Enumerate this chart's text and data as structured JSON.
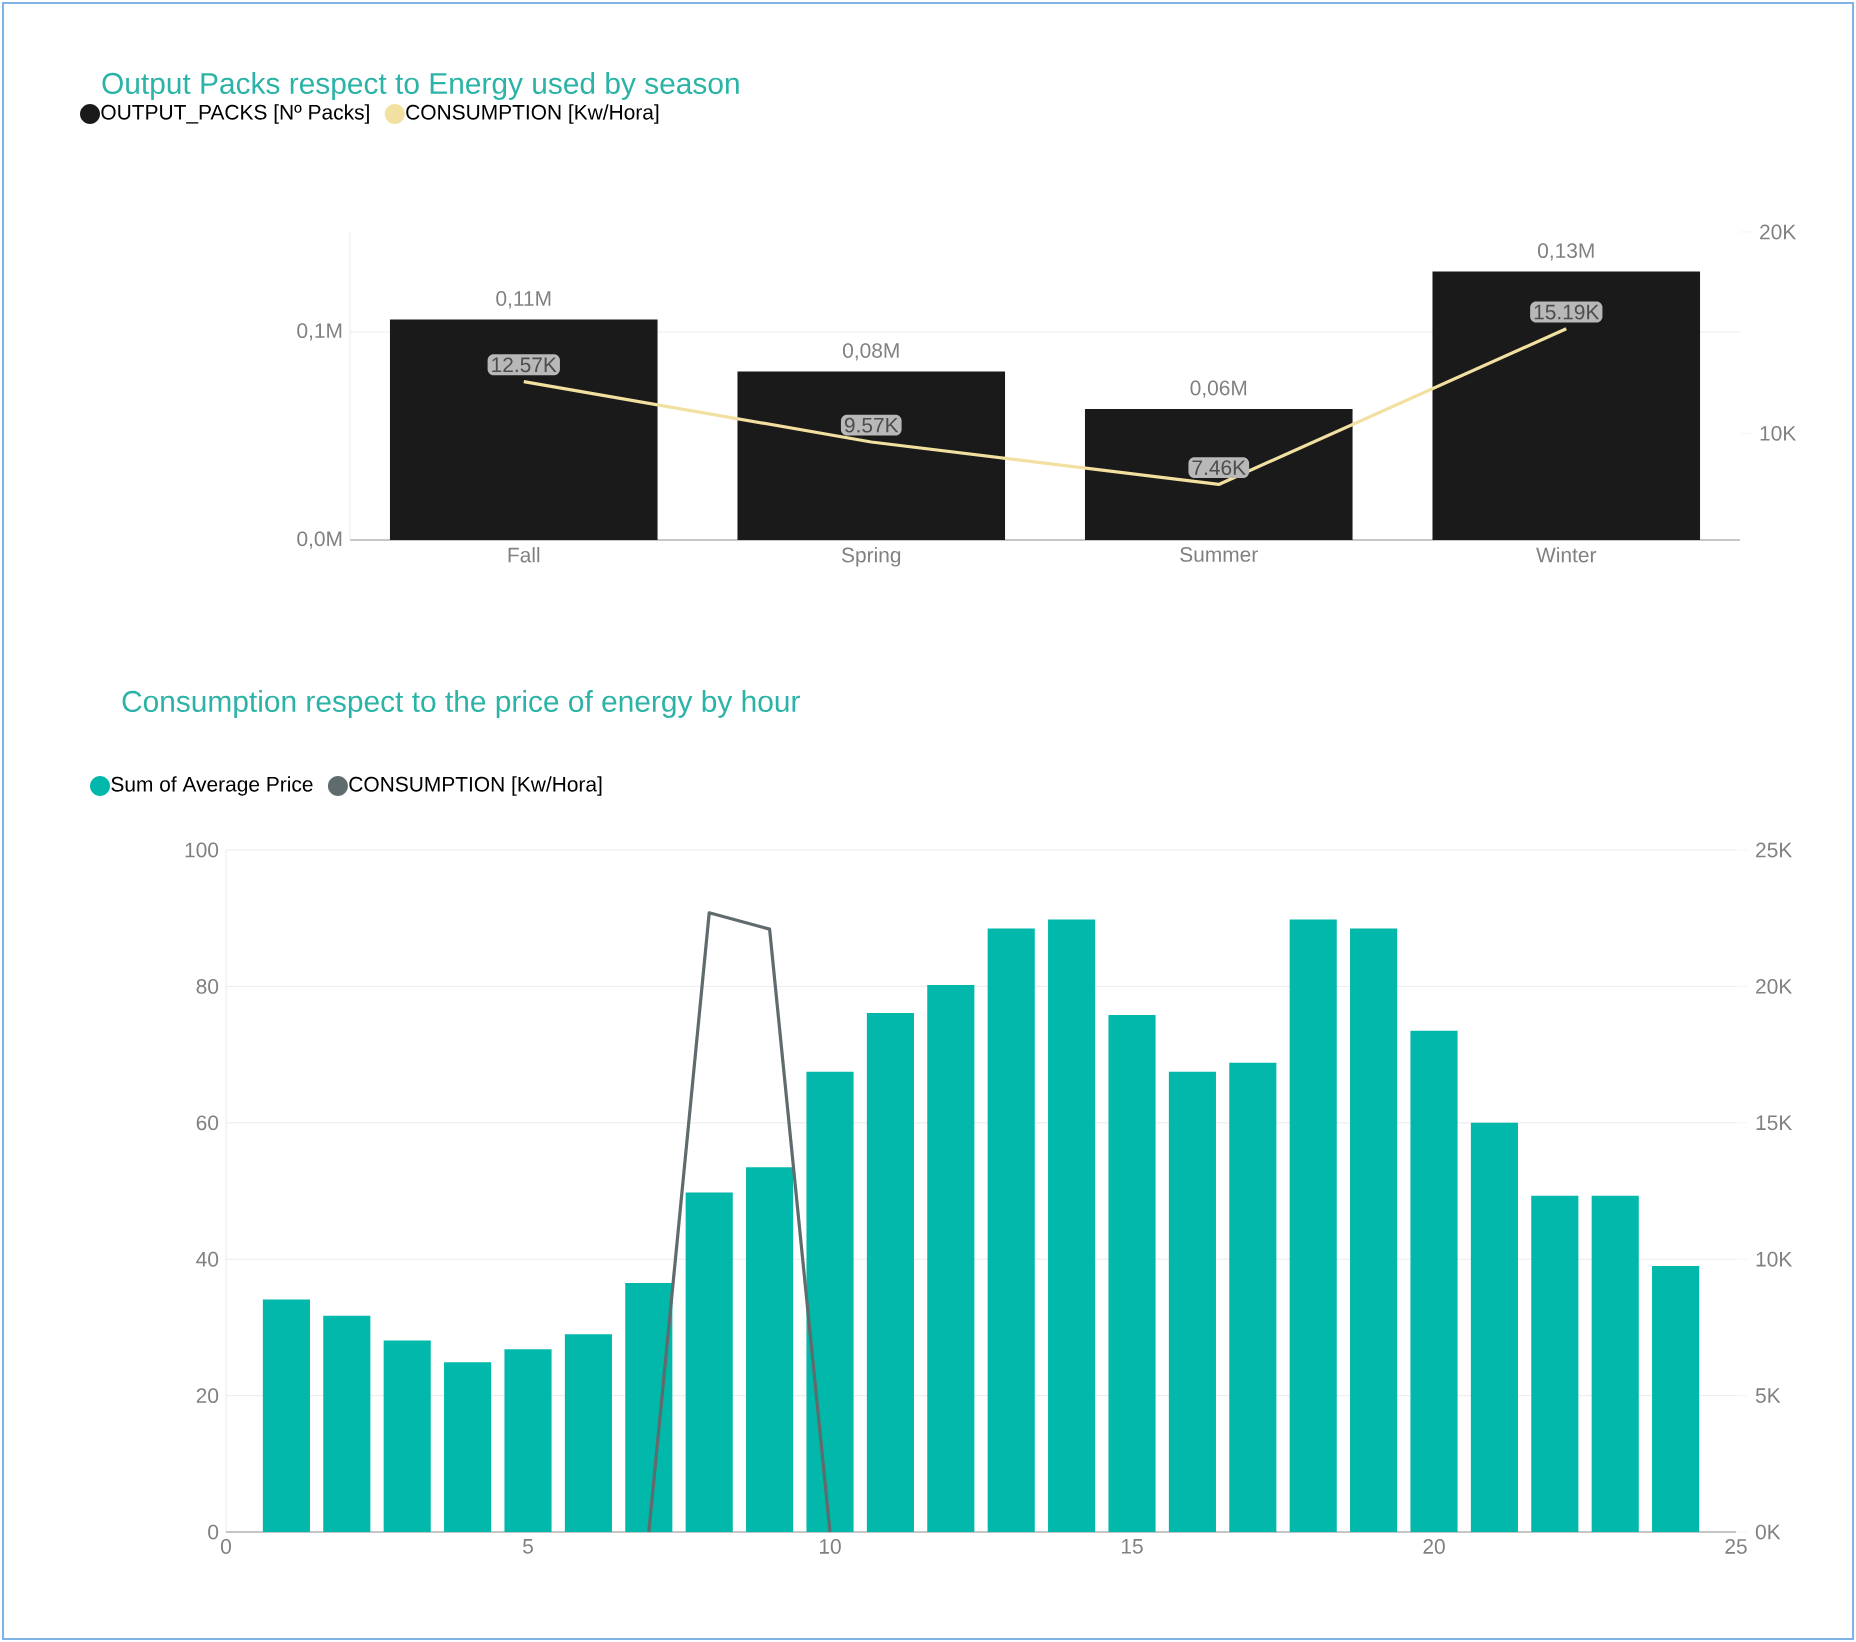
{
  "chart_data": [
    {
      "type": "bar",
      "title": "Output Packs respect to Energy used by season",
      "categories": [
        "Fall",
        "Spring",
        "Summer",
        "Winter"
      ],
      "series": [
        {
          "name": "OUTPUT_PACKS [Nº Packs]",
          "color": "#1a1a1a",
          "values": [
            106000,
            81000,
            63000,
            129000
          ],
          "value_labels": [
            "0,11M",
            "0,08M",
            "0,06M",
            "0,13M"
          ]
        },
        {
          "name": "CONSUMPTION [Kw/Hora]",
          "type": "line",
          "axis": "y2",
          "color": "#f2e0a0",
          "values": [
            12570,
            9570,
            7460,
            15190
          ],
          "value_labels": [
            "12.57K",
            "9.57K",
            "7.46K",
            "15.19K"
          ]
        }
      ],
      "ylim": [
        0,
        148000
      ],
      "yticks": [
        {
          "value": 0,
          "label": "0,0M"
        },
        {
          "value": 100000,
          "label": "0,1M"
        }
      ],
      "y2lim": [
        4700,
        20000
      ],
      "y2ticks": [
        {
          "value": 10000,
          "label": "10K"
        },
        {
          "value": 20000,
          "label": "20K"
        }
      ],
      "grid": "y",
      "legend": "top left"
    },
    {
      "type": "bar",
      "title": "Consumption respect to the price of energy by hour",
      "x": [
        1,
        2,
        3,
        4,
        5,
        6,
        7,
        8,
        9,
        10,
        11,
        12,
        13,
        14,
        15,
        16,
        17,
        18,
        19,
        20,
        21,
        22,
        23,
        24
      ],
      "series": [
        {
          "name": "Sum of Average Price",
          "color": "#01b8aa",
          "values": [
            34.1,
            31.7,
            28.1,
            24.9,
            26.8,
            29,
            36.5,
            49.8,
            53.5,
            67.5,
            76.1,
            80.2,
            88.5,
            89.8,
            75.8,
            67.5,
            68.8,
            89.8,
            88.5,
            73.5,
            60,
            49.3,
            49.3,
            39
          ]
        },
        {
          "name": "CONSUMPTION [Kw/Hora]",
          "type": "line",
          "axis": "y2",
          "color": "#5f6b6d",
          "x": [
            7,
            8,
            9,
            10
          ],
          "values": [
            0,
            22700,
            22100,
            0
          ]
        }
      ],
      "xlim": [
        0,
        25
      ],
      "xticks": [
        0,
        5,
        10,
        15,
        20,
        25
      ],
      "ylim": [
        0,
        100
      ],
      "yticks": [
        0,
        20,
        40,
        60,
        80,
        100
      ],
      "y2lim": [
        0,
        25000
      ],
      "y2ticks": [
        {
          "value": 0,
          "label": "0K"
        },
        {
          "value": 5000,
          "label": "5K"
        },
        {
          "value": 10000,
          "label": "10K"
        },
        {
          "value": 15000,
          "label": "15K"
        },
        {
          "value": 20000,
          "label": "20K"
        },
        {
          "value": 25000,
          "label": "25K"
        }
      ],
      "grid": "y",
      "legend": "top left"
    }
  ]
}
